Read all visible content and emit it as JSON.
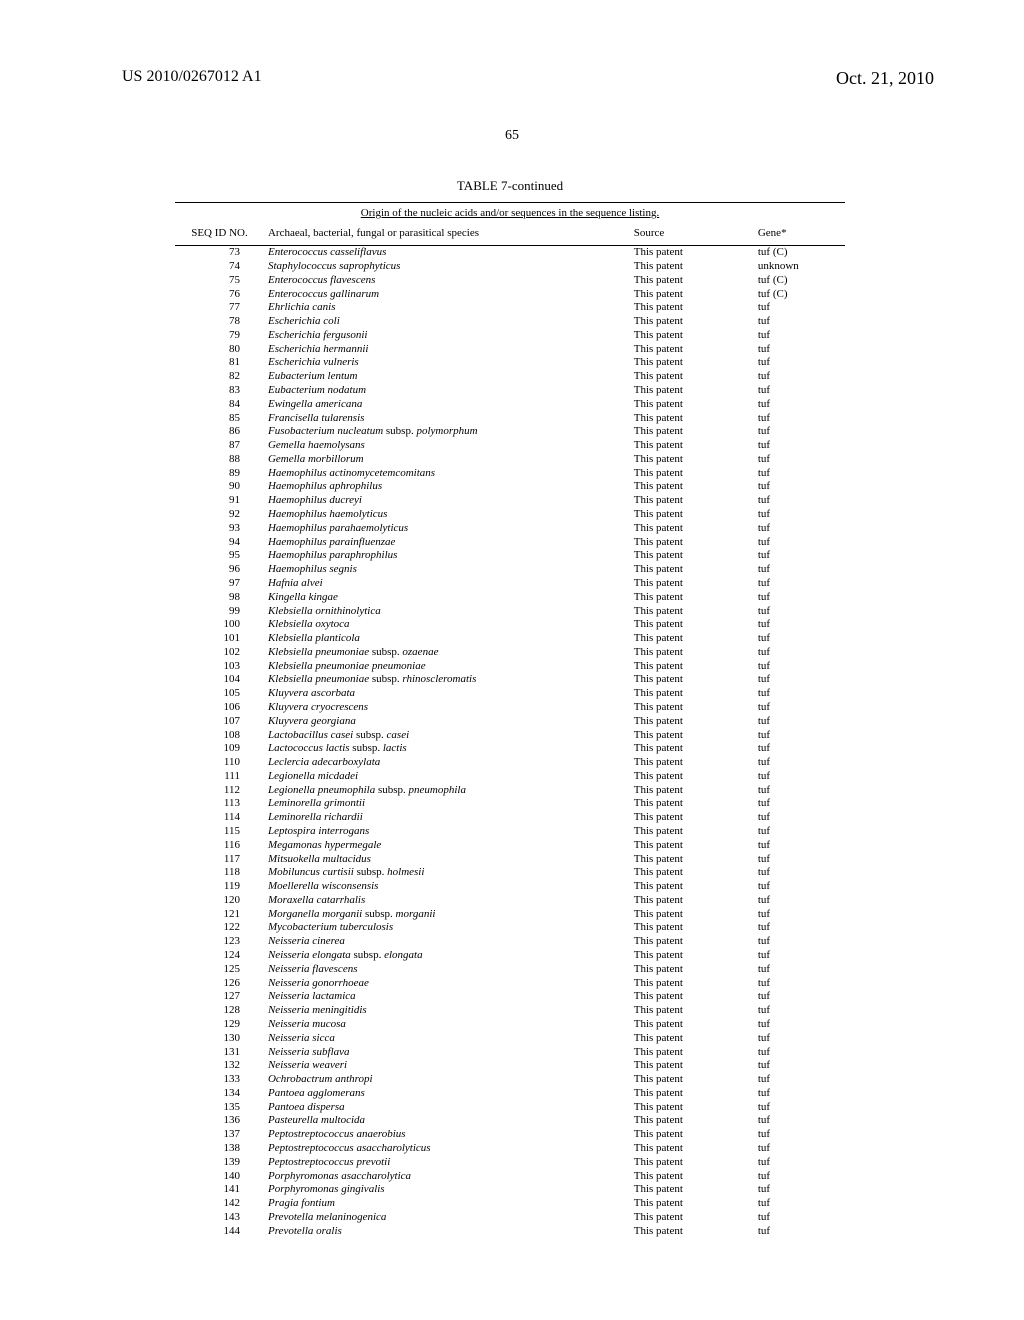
{
  "header": {
    "left": "US 2010/0267012 A1",
    "right": "Oct. 21, 2010"
  },
  "page_number": "65",
  "table": {
    "title": "TABLE 7-continued",
    "caption": "Origin of the nucleic acids and/or sequences in the sequence listing.",
    "columns": {
      "seq": "SEQ ID NO.",
      "species": "Archaeal, bacterial, fungal or parasitical species",
      "source": "Source",
      "gene": "Gene*"
    },
    "rows": [
      {
        "seq": "73",
        "species": "Enterococcus casseliflavus",
        "source": "This patent",
        "gene": "tuf (C)"
      },
      {
        "seq": "74",
        "species": "Staphylococcus saprophyticus",
        "source": "This patent",
        "gene": "unknown"
      },
      {
        "seq": "75",
        "species": "Enterococcus flavescens",
        "source": "This patent",
        "gene": "tuf (C)"
      },
      {
        "seq": "76",
        "species": "Enterococcus gallinarum",
        "source": "This patent",
        "gene": "tuf (C)"
      },
      {
        "seq": "77",
        "species": "Ehrlichia canis",
        "source": "This patent",
        "gene": "tuf"
      },
      {
        "seq": "78",
        "species": "Escherichia coli",
        "source": "This patent",
        "gene": "tuf"
      },
      {
        "seq": "79",
        "species": "Escherichia fergusonii",
        "source": "This patent",
        "gene": "tuf"
      },
      {
        "seq": "80",
        "species": "Escherichia hermannii",
        "source": "This patent",
        "gene": "tuf"
      },
      {
        "seq": "81",
        "species": "Escherichia vulneris",
        "source": "This patent",
        "gene": "tuf"
      },
      {
        "seq": "82",
        "species": "Eubacterium lentum",
        "source": "This patent",
        "gene": "tuf"
      },
      {
        "seq": "83",
        "species": "Eubacterium nodatum",
        "source": "This patent",
        "gene": "tuf"
      },
      {
        "seq": "84",
        "species": "Ewingella americana",
        "source": "This patent",
        "gene": "tuf"
      },
      {
        "seq": "85",
        "species": "Francisella tularensis",
        "source": "This patent",
        "gene": "tuf"
      },
      {
        "seq": "86",
        "species": "Fusobacterium nucleatum <span class=\"roman\">subsp.</span> polymorphum",
        "source": "This patent",
        "gene": "tuf"
      },
      {
        "seq": "87",
        "species": "Gemella haemolysans",
        "source": "This patent",
        "gene": "tuf"
      },
      {
        "seq": "88",
        "species": "Gemella morbillorum",
        "source": "This patent",
        "gene": "tuf"
      },
      {
        "seq": "89",
        "species": "Haemophilus actinomycetemcomitans",
        "source": "This patent",
        "gene": "tuf"
      },
      {
        "seq": "90",
        "species": "Haemophilus aphrophilus",
        "source": "This patent",
        "gene": "tuf"
      },
      {
        "seq": "91",
        "species": "Haemophilus ducreyi",
        "source": "This patent",
        "gene": "tuf"
      },
      {
        "seq": "92",
        "species": "Haemophilus haemolyticus",
        "source": "This patent",
        "gene": "tuf"
      },
      {
        "seq": "93",
        "species": "Haemophilus parahaemolyticus",
        "source": "This patent",
        "gene": "tuf"
      },
      {
        "seq": "94",
        "species": "Haemophilus parainfluenzae",
        "source": "This patent",
        "gene": "tuf"
      },
      {
        "seq": "95",
        "species": "Haemophilus paraphrophilus",
        "source": "This patent",
        "gene": "tuf"
      },
      {
        "seq": "96",
        "species": "Haemophilus segnis",
        "source": "This patent",
        "gene": "tuf"
      },
      {
        "seq": "97",
        "species": "Hafnia alvei",
        "source": "This patent",
        "gene": "tuf"
      },
      {
        "seq": "98",
        "species": "Kingella kingae",
        "source": "This patent",
        "gene": "tuf"
      },
      {
        "seq": "99",
        "species": "Klebsiella ornithinolytica",
        "source": "This patent",
        "gene": "tuf"
      },
      {
        "seq": "100",
        "species": "Klebsiella oxytoca",
        "source": "This patent",
        "gene": "tuf"
      },
      {
        "seq": "101",
        "species": "Klebsiella planticola",
        "source": "This patent",
        "gene": "tuf"
      },
      {
        "seq": "102",
        "species": "Klebsiella pneumoniae <span class=\"roman\">subsp.</span> ozaenae",
        "source": "This patent",
        "gene": "tuf"
      },
      {
        "seq": "103",
        "species": "Klebsiella pneumoniae pneumoniae",
        "source": "This patent",
        "gene": "tuf"
      },
      {
        "seq": "104",
        "species": "Klebsiella pneumoniae <span class=\"roman\">subsp.</span> rhinoscleromatis",
        "source": "This patent",
        "gene": "tuf"
      },
      {
        "seq": "105",
        "species": "Kluyvera ascorbata",
        "source": "This patent",
        "gene": "tuf"
      },
      {
        "seq": "106",
        "species": "Kluyvera cryocrescens",
        "source": "This patent",
        "gene": "tuf"
      },
      {
        "seq": "107",
        "species": "Kluyvera georgiana",
        "source": "This patent",
        "gene": "tuf"
      },
      {
        "seq": "108",
        "species": "Lactobacillus casei <span class=\"roman\">subsp.</span> casei",
        "source": "This patent",
        "gene": "tuf"
      },
      {
        "seq": "109",
        "species": "Lactococcus lactis <span class=\"roman\">subsp.</span> lactis",
        "source": "This patent",
        "gene": "tuf"
      },
      {
        "seq": "110",
        "species": "Leclercia adecarboxylata",
        "source": "This patent",
        "gene": "tuf"
      },
      {
        "seq": "111",
        "species": "Legionella micdadei",
        "source": "This patent",
        "gene": "tuf"
      },
      {
        "seq": "112",
        "species": "Legionella pneumophila <span class=\"roman\">subsp.</span> pneumophila",
        "source": "This patent",
        "gene": "tuf"
      },
      {
        "seq": "113",
        "species": "Leminorella grimontii",
        "source": "This patent",
        "gene": "tuf"
      },
      {
        "seq": "114",
        "species": "Leminorella richardii",
        "source": "This patent",
        "gene": "tuf"
      },
      {
        "seq": "115",
        "species": "Leptospira interrogans",
        "source": "This patent",
        "gene": "tuf"
      },
      {
        "seq": "116",
        "species": "Megamonas hypermegale",
        "source": "This patent",
        "gene": "tuf"
      },
      {
        "seq": "117",
        "species": "Mitsuokella multacidus",
        "source": "This patent",
        "gene": "tuf"
      },
      {
        "seq": "118",
        "species": "Mobiluncus curtisii <span class=\"roman\">subsp.</span> holmesii",
        "source": "This patent",
        "gene": "tuf"
      },
      {
        "seq": "119",
        "species": "Moellerella wisconsensis",
        "source": "This patent",
        "gene": "tuf"
      },
      {
        "seq": "120",
        "species": "Moraxella catarrhalis",
        "source": "This patent",
        "gene": "tuf"
      },
      {
        "seq": "121",
        "species": "Morganella morganii <span class=\"roman\">subsp.</span> morganii",
        "source": "This patent",
        "gene": "tuf"
      },
      {
        "seq": "122",
        "species": "Mycobacterium tuberculosis",
        "source": "This patent",
        "gene": "tuf"
      },
      {
        "seq": "123",
        "species": "Neisseria cinerea",
        "source": "This patent",
        "gene": "tuf"
      },
      {
        "seq": "124",
        "species": "Neisseria elongata <span class=\"roman\">subsp.</span> elongata",
        "source": "This patent",
        "gene": "tuf"
      },
      {
        "seq": "125",
        "species": "Neisseria flavescens",
        "source": "This patent",
        "gene": "tuf"
      },
      {
        "seq": "126",
        "species": "Neisseria gonorrhoeae",
        "source": "This patent",
        "gene": "tuf"
      },
      {
        "seq": "127",
        "species": "Neisseria lactamica",
        "source": "This patent",
        "gene": "tuf"
      },
      {
        "seq": "128",
        "species": "Neisseria meningitidis",
        "source": "This patent",
        "gene": "tuf"
      },
      {
        "seq": "129",
        "species": "Neisseria mucosa",
        "source": "This patent",
        "gene": "tuf"
      },
      {
        "seq": "130",
        "species": "Neisseria sicca",
        "source": "This patent",
        "gene": "tuf"
      },
      {
        "seq": "131",
        "species": "Neisseria subflava",
        "source": "This patent",
        "gene": "tuf"
      },
      {
        "seq": "132",
        "species": "Neisseria weaveri",
        "source": "This patent",
        "gene": "tuf"
      },
      {
        "seq": "133",
        "species": "Ochrobactrum anthropi",
        "source": "This patent",
        "gene": "tuf"
      },
      {
        "seq": "134",
        "species": "Pantoea agglomerans",
        "source": "This patent",
        "gene": "tuf"
      },
      {
        "seq": "135",
        "species": "Pantoea dispersa",
        "source": "This patent",
        "gene": "tuf"
      },
      {
        "seq": "136",
        "species": "Pasteurella multocida",
        "source": "This patent",
        "gene": "tuf"
      },
      {
        "seq": "137",
        "species": "Peptostreptococcus anaerobius",
        "source": "This patent",
        "gene": "tuf"
      },
      {
        "seq": "138",
        "species": "Peptostreptococcus asaccharolyticus",
        "source": "This patent",
        "gene": "tuf"
      },
      {
        "seq": "139",
        "species": "Peptostreptococcus prevotii",
        "source": "This patent",
        "gene": "tuf"
      },
      {
        "seq": "140",
        "species": "Porphyromonas asaccharolytica",
        "source": "This patent",
        "gene": "tuf"
      },
      {
        "seq": "141",
        "species": "Porphyromonas gingivalis",
        "source": "This patent",
        "gene": "tuf"
      },
      {
        "seq": "142",
        "species": "Pragia fontium",
        "source": "This patent",
        "gene": "tuf"
      },
      {
        "seq": "143",
        "species": "Prevotella melaninogenica",
        "source": "This patent",
        "gene": "tuf"
      },
      {
        "seq": "144",
        "species": "Prevotella oralis",
        "source": "This patent",
        "gene": "tuf"
      }
    ]
  }
}
